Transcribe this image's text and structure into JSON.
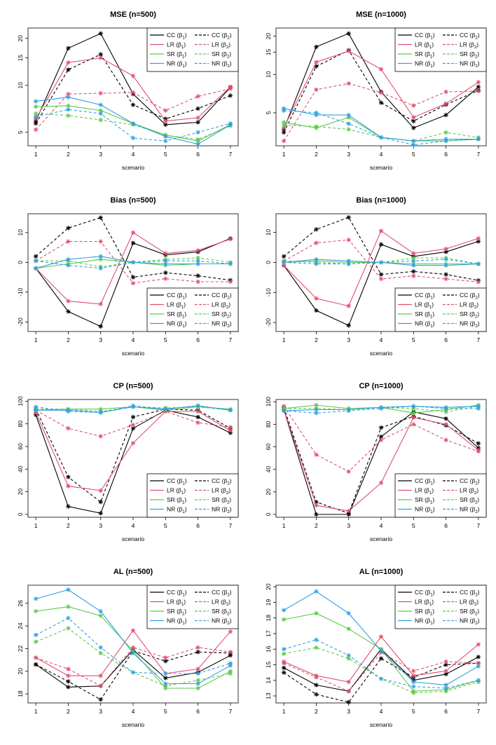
{
  "layout": {
    "rows": 4,
    "cols": 2
  },
  "legend_entries": [
    {
      "label": "CC (β",
      "sub": "1",
      "close": ")",
      "series": "CC_b1",
      "color": "#000000",
      "dash": false
    },
    {
      "label": "CC (β",
      "sub": "2",
      "close": ")",
      "series": "CC_b2",
      "color": "#000000",
      "dash": true
    },
    {
      "label": "LR (β",
      "sub": "1",
      "close": ")",
      "series": "LR_b1",
      "color": "#e0506e",
      "dash": false
    },
    {
      "label": "LR (β",
      "sub": "2",
      "close": ")",
      "series": "LR_b2",
      "color": "#e0506e",
      "dash": true
    },
    {
      "label": "SR (β",
      "sub": "1",
      "close": ")",
      "series": "SR_b1",
      "color": "#5cc94a",
      "dash": false
    },
    {
      "label": "SR (β",
      "sub": "2",
      "close": ")",
      "series": "SR_b2",
      "color": "#5cc94a",
      "dash": true
    },
    {
      "label": "NR (β",
      "sub": "1",
      "close": ")",
      "series": "NR_b1",
      "color": "#32a0e0",
      "dash": false
    },
    {
      "label": "NR (β",
      "sub": "2",
      "close": ")",
      "series": "NR_b2",
      "color": "#32a0e0",
      "dash": true
    }
  ],
  "chart_data": [
    {
      "type": "line",
      "title": "MSE (n=500)",
      "xlabel": "scenario",
      "ylabel": "",
      "x": [
        1,
        2,
        3,
        4,
        5,
        6,
        7
      ],
      "scale": "log",
      "ylim": [
        4.1,
        23.3
      ],
      "yticks": [
        5,
        10,
        15,
        20
      ],
      "tick_labels": [
        "5",
        "10",
        "15",
        "20"
      ],
      "legend_position": "top-right",
      "grid": false,
      "series": [
        {
          "name": "CC (β1)",
          "values": [
            5.9,
            17.3,
            21.5,
            8.8,
            5.6,
            5.8,
            9.7
          ]
        },
        {
          "name": "CC (β2)",
          "values": [
            5.7,
            12.6,
            15.8,
            7.5,
            6.1,
            7.1,
            8.6
          ]
        },
        {
          "name": "LR (β1)",
          "values": [
            6.1,
            14.0,
            15.0,
            11.5,
            5.9,
            6.2,
            9.8
          ]
        },
        {
          "name": "LR (β2)",
          "values": [
            5.2,
            8.8,
            8.9,
            9.0,
            6.9,
            8.5,
            9.5
          ]
        },
        {
          "name": "SR (β1)",
          "values": [
            7.3,
            7.4,
            6.9,
            5.7,
            4.8,
            4.4,
            5.6
          ]
        },
        {
          "name": "SR (β2)",
          "values": [
            6.6,
            6.4,
            6.0,
            5.6,
            4.8,
            4.5,
            5.5
          ]
        },
        {
          "name": "NR (β1)",
          "values": [
            7.9,
            8.4,
            7.5,
            5.7,
            4.7,
            4.2,
            5.6
          ]
        },
        {
          "name": "NR (β2)",
          "values": [
            6.3,
            7.0,
            6.6,
            4.6,
            4.4,
            5.0,
            5.7
          ]
        }
      ]
    },
    {
      "type": "line",
      "title": "MSE (n=1000)",
      "xlabel": "scenario",
      "ylabel": "",
      "x": [
        1,
        2,
        3,
        4,
        5,
        6,
        7
      ],
      "scale": "log",
      "ylim": [
        2.75,
        23.2
      ],
      "yticks": [
        5,
        10,
        15,
        20
      ],
      "tick_labels": [
        "5",
        "10",
        "15",
        "20"
      ],
      "legend_position": "top-right",
      "grid": false,
      "series": [
        {
          "name": "CC (β1)",
          "values": [
            3.7,
            16.5,
            21.0,
            7.3,
            3.8,
            4.8,
            8.0
          ]
        },
        {
          "name": "CC (β2)",
          "values": [
            3.5,
            11.6,
            15.5,
            6.0,
            4.3,
            5.8,
            7.5
          ]
        },
        {
          "name": "LR (β1)",
          "values": [
            3.8,
            12.5,
            15.3,
            11.0,
            4.6,
            5.9,
            8.7
          ]
        },
        {
          "name": "LR (β2)",
          "values": [
            3.0,
            7.6,
            8.5,
            7.2,
            5.7,
            7.3,
            7.4
          ]
        },
        {
          "name": "SR (β1)",
          "values": [
            4.2,
            3.8,
            4.6,
            3.2,
            3.0,
            3.0,
            3.1
          ]
        },
        {
          "name": "SR (β2)",
          "values": [
            4.0,
            3.9,
            3.7,
            3.2,
            3.0,
            3.5,
            3.2
          ]
        },
        {
          "name": "NR (β1)",
          "values": [
            5.4,
            4.8,
            4.8,
            3.2,
            3.0,
            3.1,
            3.1
          ]
        },
        {
          "name": "NR (β2)",
          "values": [
            5.2,
            5.0,
            4.1,
            3.2,
            2.8,
            3.0,
            3.1
          ]
        }
      ]
    },
    {
      "type": "line",
      "title": "Bias (n=500)",
      "xlabel": "scenario",
      "ylabel": "",
      "x": [
        1,
        2,
        3,
        4,
        5,
        6,
        7
      ],
      "scale": "linear",
      "ylim": [
        -23.2,
        16.3
      ],
      "yticks": [
        -20,
        -10,
        0,
        10
      ],
      "tick_labels": [
        "-20",
        "-10",
        "0",
        "10"
      ],
      "legend_position": "bottom-right",
      "grid": false,
      "series": [
        {
          "name": "CC (β1)",
          "values": [
            -2.0,
            -16.5,
            -21.5,
            6.5,
            2.5,
            3.5,
            8.0
          ]
        },
        {
          "name": "CC (β2)",
          "values": [
            2.0,
            11.5,
            15.0,
            -5.0,
            -3.5,
            -4.5,
            -6.0
          ]
        },
        {
          "name": "LR (β1)",
          "values": [
            -2.0,
            -13.0,
            -14.0,
            10.0,
            3.0,
            4.0,
            7.8
          ]
        },
        {
          "name": "LR (β2)",
          "values": [
            0.5,
            7.0,
            7.0,
            -7.0,
            -5.5,
            -6.5,
            -6.5
          ]
        },
        {
          "name": "SR (β1)",
          "values": [
            -2.0,
            -0.5,
            1.0,
            0.0,
            -1.0,
            -0.5,
            -0.5
          ]
        },
        {
          "name": "SR (β2)",
          "values": [
            0.5,
            0.5,
            -1.5,
            0.0,
            1.0,
            1.5,
            0.0
          ]
        },
        {
          "name": "NR (β1)",
          "values": [
            -2.0,
            1.0,
            2.0,
            0.0,
            -0.5,
            -0.5,
            -0.5
          ]
        },
        {
          "name": "NR (β2)",
          "values": [
            0.5,
            -1.0,
            -2.0,
            0.0,
            0.5,
            0.5,
            -0.5
          ]
        }
      ]
    },
    {
      "type": "line",
      "title": "Bias (n=1000)",
      "xlabel": "scenario",
      "ylabel": "",
      "x": [
        1,
        2,
        3,
        4,
        5,
        6,
        7
      ],
      "scale": "linear",
      "ylim": [
        -23.0,
        16.2
      ],
      "yticks": [
        -20,
        -10,
        0,
        10
      ],
      "tick_labels": [
        "-20",
        "-10",
        "0",
        "10"
      ],
      "legend_position": "bottom-right",
      "grid": false,
      "series": [
        {
          "name": "CC (β1)",
          "values": [
            -1.0,
            -16.0,
            -21.0,
            6.0,
            2.0,
            3.5,
            7.0
          ]
        },
        {
          "name": "CC (β2)",
          "values": [
            2.0,
            11.0,
            15.0,
            -4.0,
            -3.0,
            -4.0,
            -6.0
          ]
        },
        {
          "name": "LR (β1)",
          "values": [
            -1.0,
            -12.0,
            -14.5,
            10.5,
            3.0,
            4.5,
            8.0
          ]
        },
        {
          "name": "LR (β2)",
          "values": [
            0.5,
            6.5,
            7.5,
            -5.5,
            -4.5,
            -5.5,
            -6.5
          ]
        },
        {
          "name": "SR (β1)",
          "values": [
            0.0,
            0.5,
            0.0,
            0.0,
            -0.5,
            -0.5,
            -0.5
          ]
        },
        {
          "name": "SR (β2)",
          "values": [
            0.5,
            0.0,
            -0.5,
            0.0,
            1.5,
            1.5,
            -0.5
          ]
        },
        {
          "name": "NR (β1)",
          "values": [
            0.0,
            1.0,
            0.5,
            0.0,
            -1.0,
            -1.0,
            -0.5
          ]
        },
        {
          "name": "NR (β2)",
          "values": [
            0.0,
            -0.5,
            -0.5,
            0.0,
            0.5,
            1.0,
            -0.5
          ]
        }
      ]
    },
    {
      "type": "line",
      "title": "CP (n=500)",
      "xlabel": "scenario",
      "ylabel": "",
      "x": [
        1,
        2,
        3,
        4,
        5,
        6,
        7
      ],
      "scale": "linear",
      "ylim": [
        -2.5,
        101.5
      ],
      "yticks": [
        0,
        20,
        40,
        60,
        80,
        100
      ],
      "tick_labels": [
        "0",
        "20",
        "40",
        "60",
        "80",
        "100"
      ],
      "legend_position": "bottom-right",
      "grid": false,
      "series": [
        {
          "name": "CC (β1)",
          "values": [
            88,
            7,
            1,
            76,
            92,
            86,
            72
          ]
        },
        {
          "name": "CC (β2)",
          "values": [
            93,
            33,
            11,
            86,
            93,
            92,
            76
          ]
        },
        {
          "name": "LR (β1)",
          "values": [
            90,
            25,
            21,
            63,
            91,
            91,
            74
          ]
        },
        {
          "name": "LR (β2)",
          "values": [
            92,
            76,
            69,
            79,
            91,
            81,
            77
          ]
        },
        {
          "name": "SR (β1)",
          "values": [
            92,
            93,
            93,
            95,
            92,
            95,
            93
          ]
        },
        {
          "name": "SR (β2)",
          "values": [
            93,
            93,
            91,
            95,
            94,
            95,
            92
          ]
        },
        {
          "name": "NR (β1)",
          "values": [
            92,
            92,
            90,
            95,
            93,
            96,
            92
          ]
        },
        {
          "name": "NR (β2)",
          "values": [
            95,
            91,
            90,
            96,
            93,
            96,
            92
          ]
        }
      ]
    },
    {
      "type": "line",
      "title": "CP (n=1000)",
      "xlabel": "scenario",
      "ylabel": "",
      "x": [
        1,
        2,
        3,
        4,
        5,
        6,
        7
      ],
      "scale": "linear",
      "ylim": [
        -2.5,
        102.0
      ],
      "yticks": [
        0,
        20,
        40,
        60,
        80,
        100
      ],
      "tick_labels": [
        "0",
        "20",
        "40",
        "60",
        "80",
        "100"
      ],
      "legend_position": "bottom-right",
      "grid": false,
      "series": [
        {
          "name": "CC (β1)",
          "values": [
            93,
            0,
            0,
            69,
            91,
            85,
            59
          ]
        },
        {
          "name": "CC (β2)",
          "values": [
            95,
            11,
            1,
            77,
            87,
            79,
            63
          ]
        },
        {
          "name": "LR (β1)",
          "values": [
            93,
            8,
            3,
            28,
            86,
            80,
            57
          ]
        },
        {
          "name": "LR (β2)",
          "values": [
            96,
            53,
            38,
            66,
            80,
            66,
            56
          ]
        },
        {
          "name": "SR (β1)",
          "values": [
            94,
            97,
            94,
            95,
            90,
            93,
            97
          ]
        },
        {
          "name": "SR (β2)",
          "values": [
            94,
            94,
            93,
            95,
            94,
            91,
            96
          ]
        },
        {
          "name": "NR (β1)",
          "values": [
            92,
            93,
            93,
            95,
            96,
            95,
            96
          ]
        },
        {
          "name": "NR (β2)",
          "values": [
            92,
            90,
            92,
            94,
            96,
            94,
            94
          ]
        }
      ]
    },
    {
      "type": "line",
      "title": "AL (n=500)",
      "xlabel": "scenario",
      "ylabel": "",
      "x": [
        1,
        2,
        3,
        4,
        5,
        6,
        7
      ],
      "scale": "linear",
      "ylim": [
        17.2,
        27.6
      ],
      "yticks": [
        18,
        20,
        22,
        24,
        26
      ],
      "tick_labels": [
        "18",
        "20",
        "22",
        "24",
        "26"
      ],
      "legend_position": "top-right",
      "grid": false,
      "series": [
        {
          "name": "CC (β1)",
          "values": [
            20.6,
            18.6,
            18.7,
            21.9,
            19.4,
            19.9,
            21.4
          ]
        },
        {
          "name": "CC (β2)",
          "values": [
            20.6,
            19.1,
            17.5,
            21.8,
            20.9,
            21.7,
            21.6
          ]
        },
        {
          "name": "LR (β1)",
          "values": [
            21.2,
            19.6,
            19.6,
            23.6,
            19.8,
            20.2,
            23.5
          ]
        },
        {
          "name": "LR (β2)",
          "values": [
            21.2,
            20.2,
            18.7,
            22.1,
            21.2,
            22.1,
            21.7
          ]
        },
        {
          "name": "SR (β1)",
          "values": [
            25.3,
            25.7,
            24.9,
            21.8,
            18.5,
            18.5,
            20.0
          ]
        },
        {
          "name": "SR (β2)",
          "values": [
            22.6,
            23.8,
            21.6,
            19.9,
            18.7,
            19.2,
            19.8
          ]
        },
        {
          "name": "NR (β1)",
          "values": [
            26.4,
            27.2,
            25.3,
            21.6,
            18.9,
            18.9,
            20.5
          ]
        },
        {
          "name": "NR (β2)",
          "values": [
            23.2,
            24.7,
            22.1,
            19.9,
            19.8,
            19.8,
            20.7
          ]
        }
      ]
    },
    {
      "type": "line",
      "title": "AL (n=1000)",
      "xlabel": "scenario",
      "ylabel": "",
      "x": [
        1,
        2,
        3,
        4,
        5,
        6,
        7
      ],
      "scale": "linear",
      "ylim": [
        12.55,
        20.1
      ],
      "yticks": [
        13,
        14,
        15,
        16,
        17,
        18,
        19,
        20
      ],
      "tick_labels": [
        "13",
        "14",
        "15",
        "16",
        "17",
        "18",
        "19",
        "20"
      ],
      "legend_position": "top-right",
      "grid": false,
      "series": [
        {
          "name": "CC (β1)",
          "values": [
            14.8,
            13.7,
            13.3,
            16.0,
            14.0,
            14.4,
            15.5
          ]
        },
        {
          "name": "CC (β2)",
          "values": [
            14.5,
            13.1,
            12.6,
            15.4,
            14.2,
            15.0,
            15.1
          ]
        },
        {
          "name": "LR (β1)",
          "values": [
            15.2,
            14.3,
            13.9,
            16.8,
            14.3,
            14.6,
            16.3
          ]
        },
        {
          "name": "LR (β2)",
          "values": [
            15.1,
            14.2,
            13.3,
            15.8,
            14.6,
            15.2,
            15.1
          ]
        },
        {
          "name": "SR (β1)",
          "values": [
            17.9,
            18.3,
            17.3,
            16.0,
            13.3,
            13.4,
            14.0
          ]
        },
        {
          "name": "SR (β2)",
          "values": [
            15.7,
            16.1,
            15.4,
            14.1,
            13.2,
            13.3,
            13.9
          ]
        },
        {
          "name": "NR (β1)",
          "values": [
            18.5,
            19.7,
            18.3,
            15.9,
            13.9,
            13.7,
            14.9
          ]
        },
        {
          "name": "NR (β2)",
          "values": [
            16.0,
            16.6,
            15.6,
            14.1,
            13.6,
            13.5,
            14.0
          ]
        }
      ]
    }
  ]
}
